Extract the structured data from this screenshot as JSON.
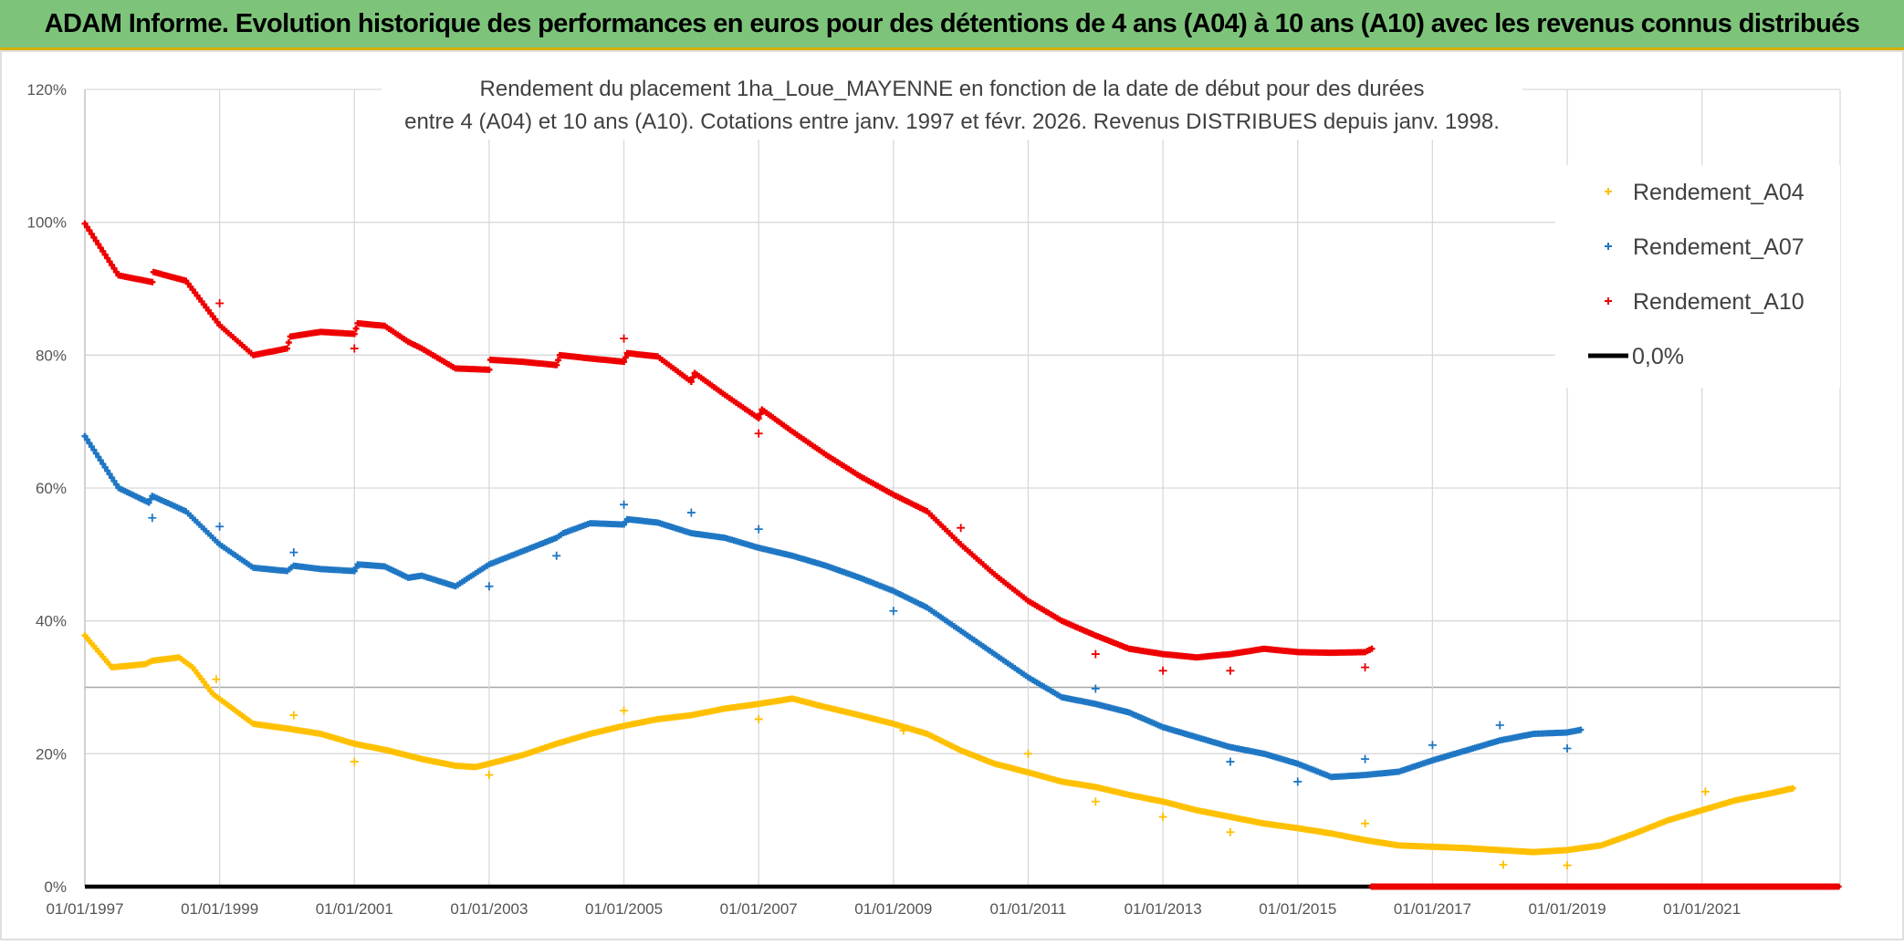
{
  "banner": {
    "title": "ADAM Informe. Evolution historique des performances en euros pour des détentions de 4 ans (A04) à 10 ans (A10) avec les revenus connus distribués"
  },
  "chart_data": {
    "type": "scatter",
    "title_line1": "Rendement du placement 1ha_Loue_MAYENNE en fonction de la date de début pour des durées",
    "title_line2": "entre 4 (A04) et 10 ans (A10). Cotations entre janv. 1997 et févr. 2026. Revenus DISTRIBUES depuis janv. 1998.",
    "x_range": [
      1997.0,
      2023.05
    ],
    "y_range": [
      0,
      120
    ],
    "x_ticks": [
      {
        "value": 1997,
        "label": "01/01/1997"
      },
      {
        "value": 1999,
        "label": "01/01/1999"
      },
      {
        "value": 2001,
        "label": "01/01/2001"
      },
      {
        "value": 2003,
        "label": "01/01/2003"
      },
      {
        "value": 2005,
        "label": "01/01/2005"
      },
      {
        "value": 2007,
        "label": "01/01/2007"
      },
      {
        "value": 2009,
        "label": "01/01/2009"
      },
      {
        "value": 2011,
        "label": "01/01/2011"
      },
      {
        "value": 2013,
        "label": "01/01/2013"
      },
      {
        "value": 2015,
        "label": "01/01/2015"
      },
      {
        "value": 2017,
        "label": "01/01/2017"
      },
      {
        "value": 2019,
        "label": "01/01/2019"
      },
      {
        "value": 2021,
        "label": "01/01/2021"
      }
    ],
    "y_ticks": [
      {
        "value": 0,
        "label": "0%"
      },
      {
        "value": 20,
        "label": "20%"
      },
      {
        "value": 40,
        "label": "40%"
      },
      {
        "value": 60,
        "label": "60%"
      },
      {
        "value": 80,
        "label": "80%"
      },
      {
        "value": 100,
        "label": "100%"
      },
      {
        "value": 120,
        "label": "120%"
      }
    ],
    "highlight_line": {
      "value": 30,
      "color": "#a6a6a6"
    },
    "grid": true,
    "series": [
      {
        "name": "Rendement_A04",
        "color": "#ffc000",
        "points": [
          [
            1997.0,
            37.8
          ],
          [
            1997.4,
            33.0
          ],
          [
            1997.9,
            33.5
          ],
          [
            1998.0,
            34.0
          ],
          [
            1998.4,
            34.5
          ],
          [
            1998.6,
            33.0
          ],
          [
            1998.9,
            29.0
          ],
          [
            1999.5,
            24.5
          ],
          [
            2000.0,
            23.8
          ],
          [
            2000.5,
            23.0
          ],
          [
            2001.0,
            21.5
          ],
          [
            2001.5,
            20.5
          ],
          [
            2002.0,
            19.2
          ],
          [
            2002.5,
            18.2
          ],
          [
            2002.8,
            18.0
          ],
          [
            2003.0,
            18.5
          ],
          [
            2003.5,
            19.8
          ],
          [
            2004.0,
            21.5
          ],
          [
            2004.5,
            23.0
          ],
          [
            2005.0,
            24.2
          ],
          [
            2005.5,
            25.2
          ],
          [
            2006.0,
            25.8
          ],
          [
            2006.5,
            26.8
          ],
          [
            2007.0,
            27.5
          ],
          [
            2007.5,
            28.3
          ],
          [
            2008.0,
            27.0
          ],
          [
            2008.5,
            25.8
          ],
          [
            2009.0,
            24.5
          ],
          [
            2009.5,
            23.0
          ],
          [
            2010.0,
            20.5
          ],
          [
            2010.5,
            18.5
          ],
          [
            2011.0,
            17.2
          ],
          [
            2011.5,
            15.8
          ],
          [
            2012.0,
            15.0
          ],
          [
            2012.5,
            13.8
          ],
          [
            2013.0,
            12.8
          ],
          [
            2013.5,
            11.5
          ],
          [
            2014.0,
            10.5
          ],
          [
            2014.5,
            9.5
          ],
          [
            2015.0,
            8.8
          ],
          [
            2015.5,
            8.0
          ],
          [
            2016.0,
            7.0
          ],
          [
            2016.5,
            6.2
          ],
          [
            2017.0,
            6.0
          ],
          [
            2017.5,
            5.8
          ],
          [
            2018.0,
            5.5
          ],
          [
            2018.5,
            5.2
          ],
          [
            2019.0,
            5.5
          ],
          [
            2019.5,
            6.2
          ],
          [
            2020.0,
            8.0
          ],
          [
            2020.5,
            10.0
          ],
          [
            2021.0,
            11.5
          ],
          [
            2021.5,
            13.0
          ],
          [
            2022.0,
            14.0
          ],
          [
            2022.35,
            14.8
          ]
        ],
        "outliers": [
          [
            1998.95,
            31.2
          ],
          [
            2000.1,
            25.8
          ],
          [
            2001.0,
            18.8
          ],
          [
            2003.0,
            16.8
          ],
          [
            2005.0,
            26.5
          ],
          [
            2007.0,
            25.2
          ],
          [
            2009.15,
            23.5
          ],
          [
            2011.0,
            20.0
          ],
          [
            2012.0,
            12.8
          ],
          [
            2013.0,
            10.5
          ],
          [
            2014.0,
            8.2
          ],
          [
            2016.0,
            9.5
          ],
          [
            2018.05,
            3.3
          ],
          [
            2019.0,
            3.2
          ],
          [
            2021.05,
            14.3
          ]
        ]
      },
      {
        "name": "Rendement_A07",
        "color": "#1f77c4",
        "points": [
          [
            1997.0,
            67.8
          ],
          [
            1997.5,
            60.0
          ],
          [
            1997.95,
            57.8
          ],
          [
            1998.0,
            58.8
          ],
          [
            1998.5,
            56.5
          ],
          [
            1999.0,
            51.5
          ],
          [
            1999.5,
            48.0
          ],
          [
            2000.0,
            47.5
          ],
          [
            2000.1,
            48.3
          ],
          [
            2000.5,
            47.8
          ],
          [
            2001.0,
            47.5
          ],
          [
            2001.05,
            48.5
          ],
          [
            2001.45,
            48.2
          ],
          [
            2001.8,
            46.5
          ],
          [
            2002.0,
            46.8
          ],
          [
            2002.5,
            45.2
          ],
          [
            2003.0,
            48.5
          ],
          [
            2003.5,
            50.5
          ],
          [
            2004.0,
            52.5
          ],
          [
            2004.1,
            53.2
          ],
          [
            2004.5,
            54.7
          ],
          [
            2005.0,
            54.5
          ],
          [
            2005.05,
            55.3
          ],
          [
            2005.5,
            54.8
          ],
          [
            2006.0,
            53.2
          ],
          [
            2006.5,
            52.5
          ],
          [
            2007.0,
            51.0
          ],
          [
            2007.5,
            49.8
          ],
          [
            2008.0,
            48.3
          ],
          [
            2008.5,
            46.5
          ],
          [
            2009.0,
            44.5
          ],
          [
            2009.5,
            42.0
          ],
          [
            2010.0,
            38.5
          ],
          [
            2010.5,
            35.0
          ],
          [
            2011.0,
            31.5
          ],
          [
            2011.5,
            28.5
          ],
          [
            2012.0,
            27.5
          ],
          [
            2012.5,
            26.2
          ],
          [
            2013.0,
            24.0
          ],
          [
            2013.5,
            22.5
          ],
          [
            2014.0,
            21.0
          ],
          [
            2014.5,
            20.0
          ],
          [
            2015.0,
            18.5
          ],
          [
            2015.5,
            16.5
          ],
          [
            2016.0,
            16.8
          ],
          [
            2016.5,
            17.3
          ],
          [
            2017.0,
            19.0
          ],
          [
            2017.5,
            20.5
          ],
          [
            2018.0,
            22.0
          ],
          [
            2018.5,
            23.0
          ],
          [
            2019.0,
            23.2
          ],
          [
            2019.2,
            23.6
          ]
        ],
        "outliers": [
          [
            1998.0,
            55.5
          ],
          [
            1999.0,
            54.2
          ],
          [
            2000.1,
            50.3
          ],
          [
            2003.0,
            45.2
          ],
          [
            2004.0,
            49.8
          ],
          [
            2005.0,
            57.5
          ],
          [
            2006.0,
            56.3
          ],
          [
            2007.0,
            53.8
          ],
          [
            2009.0,
            41.5
          ],
          [
            2012.0,
            29.8
          ],
          [
            2014.0,
            18.8
          ],
          [
            2015.0,
            15.8
          ],
          [
            2016.0,
            19.2
          ],
          [
            2017.0,
            21.3
          ],
          [
            2018.0,
            24.3
          ],
          [
            2019.0,
            20.8
          ]
        ]
      },
      {
        "name": "Rendement_A10",
        "color": "#ee0000",
        "points": [
          [
            1997.0,
            99.8
          ],
          [
            1997.5,
            92.0
          ],
          [
            1998.0,
            91.0
          ],
          [
            1998.02,
            92.5
          ],
          [
            1998.5,
            91.2
          ],
          [
            1999.0,
            84.5
          ],
          [
            1999.5,
            80.0
          ],
          [
            2000.0,
            81.0
          ],
          [
            2000.05,
            82.8
          ],
          [
            2000.5,
            83.5
          ],
          [
            2001.0,
            83.2
          ],
          [
            2001.05,
            84.8
          ],
          [
            2001.45,
            84.4
          ],
          [
            2001.8,
            82.0
          ],
          [
            2002.0,
            81.0
          ],
          [
            2002.5,
            78.0
          ],
          [
            2003.0,
            77.8
          ],
          [
            2003.02,
            79.3
          ],
          [
            2003.5,
            79.0
          ],
          [
            2004.0,
            78.5
          ],
          [
            2004.05,
            80.0
          ],
          [
            2004.5,
            79.5
          ],
          [
            2005.0,
            79.0
          ],
          [
            2005.05,
            80.3
          ],
          [
            2005.5,
            79.8
          ],
          [
            2006.0,
            76.0
          ],
          [
            2006.05,
            77.3
          ],
          [
            2006.5,
            74.0
          ],
          [
            2007.0,
            70.5
          ],
          [
            2007.05,
            71.8
          ],
          [
            2007.5,
            68.5
          ],
          [
            2008.0,
            65.0
          ],
          [
            2008.5,
            61.8
          ],
          [
            2009.0,
            59.0
          ],
          [
            2009.5,
            56.5
          ],
          [
            2010.0,
            51.5
          ],
          [
            2010.5,
            47.0
          ],
          [
            2011.0,
            43.0
          ],
          [
            2011.5,
            40.0
          ],
          [
            2012.0,
            37.8
          ],
          [
            2012.5,
            35.8
          ],
          [
            2013.0,
            35.0
          ],
          [
            2013.5,
            34.5
          ],
          [
            2014.0,
            35.0
          ],
          [
            2014.5,
            35.8
          ],
          [
            2015.0,
            35.3
          ],
          [
            2015.5,
            35.2
          ],
          [
            2016.0,
            35.3
          ],
          [
            2016.1,
            35.8
          ]
        ],
        "outliers": [
          [
            1999.0,
            87.8
          ],
          [
            2001.0,
            81.0
          ],
          [
            2005.0,
            82.5
          ],
          [
            2007.0,
            68.2
          ],
          [
            2010.0,
            54.0
          ],
          [
            2012.0,
            35.0
          ],
          [
            2013.0,
            32.5
          ],
          [
            2014.0,
            32.5
          ],
          [
            2016.0,
            33.0
          ]
        ],
        "zero_line": [
          2016.1,
          2023.05
        ]
      }
    ],
    "reference_line": {
      "name": "0,0%",
      "value": 0,
      "color": "#000000"
    },
    "legend": {
      "position": "top-right",
      "items": [
        {
          "label": "Rendement_A04",
          "color": "#ffc000"
        },
        {
          "label": "Rendement_A07",
          "color": "#1f77c4"
        },
        {
          "label": "Rendement_A10",
          "color": "#ee0000"
        },
        {
          "label": "0,0%",
          "color": "#000000"
        }
      ]
    }
  }
}
